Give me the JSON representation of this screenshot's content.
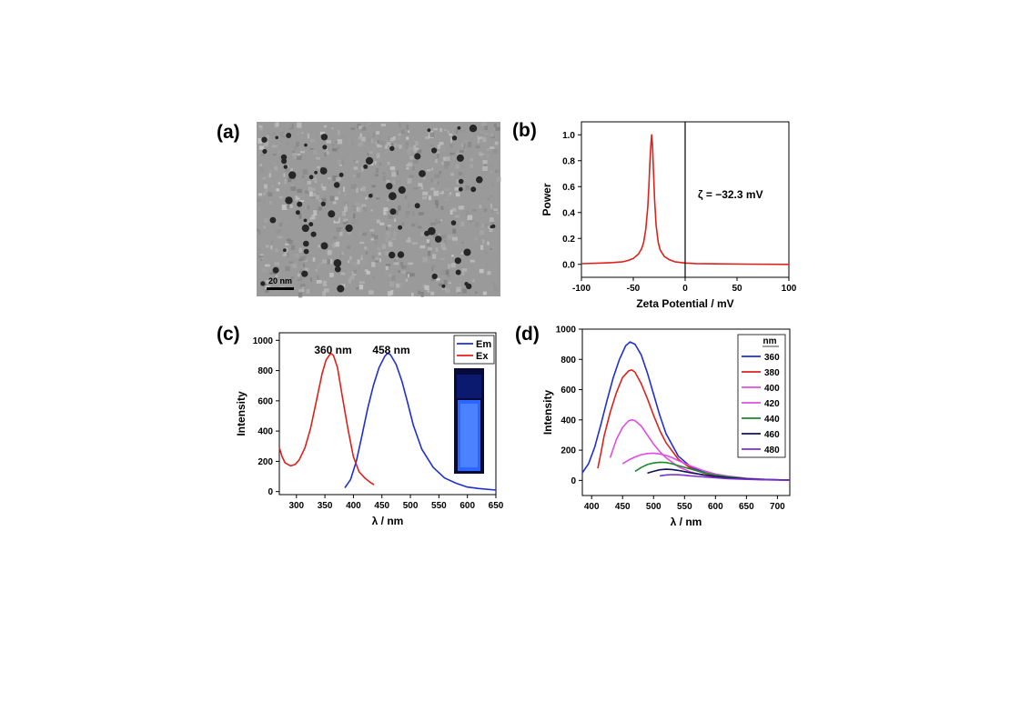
{
  "figure": {
    "panel_labels": [
      "(a)",
      "(b)",
      "(c)",
      "(d)"
    ]
  },
  "panel_a": {
    "scale_bar_label": "20 nm"
  },
  "chart_data": [
    {
      "panel": "(b)",
      "type": "line",
      "xlabel": "Zeta Potential / mV",
      "ylabel": "Power",
      "xlim": [
        -100,
        100
      ],
      "ylim": [
        -0.1,
        1.1
      ],
      "xticks": [
        -100,
        -50,
        0,
        50,
        100
      ],
      "yticks": [
        0.0,
        0.2,
        0.4,
        0.6,
        0.8,
        1.0
      ],
      "ytick_labels": [
        "0.0",
        "0.2",
        "0.4",
        "0.6",
        "0.8",
        "1.0"
      ],
      "annotation": "ζ = −32.3 mV",
      "reference_line_x": 0,
      "series": [
        {
          "color": "#e0201b",
          "x": [
            -100,
            -80,
            -70,
            -60,
            -55,
            -50,
            -45,
            -42,
            -40,
            -38,
            -36,
            -35,
            -34,
            -33,
            -32.3,
            -31.5,
            -30.5,
            -29.5,
            -28,
            -26,
            -24,
            -20,
            -15,
            -10,
            0,
            10,
            30,
            60,
            100
          ],
          "y": [
            0.005,
            0.01,
            0.014,
            0.02,
            0.03,
            0.045,
            0.08,
            0.12,
            0.17,
            0.27,
            0.45,
            0.6,
            0.78,
            0.93,
            1.0,
            0.92,
            0.72,
            0.5,
            0.3,
            0.17,
            0.11,
            0.06,
            0.035,
            0.02,
            0.01,
            0.006,
            0.004,
            0.002,
            0.0
          ]
        }
      ]
    },
    {
      "panel": "(c)",
      "type": "line",
      "xlabel": "λ / nm",
      "ylabel": "Intensity",
      "xlim": [
        270,
        650
      ],
      "ylim": [
        -20,
        1050
      ],
      "xticks": [
        300,
        350,
        400,
        450,
        500,
        550,
        600,
        650
      ],
      "yticks": [
        0,
        200,
        400,
        600,
        800,
        1000
      ],
      "annotations": [
        "360 nm",
        "458 nm"
      ],
      "legend_position": "top-right",
      "series": [
        {
          "name": "Em",
          "color": "#1f2fd6",
          "x": [
            385,
            395,
            405,
            415,
            425,
            435,
            445,
            455,
            460,
            465,
            475,
            485,
            495,
            505,
            520,
            540,
            560,
            580,
            600,
            620,
            650
          ],
          "y": [
            25,
            80,
            200,
            370,
            550,
            700,
            820,
            895,
            915,
            905,
            840,
            730,
            590,
            440,
            280,
            160,
            90,
            55,
            30,
            20,
            10
          ]
        },
        {
          "name": "Ex",
          "color": "#e0201b",
          "x": [
            270,
            275,
            280,
            290,
            298,
            305,
            315,
            325,
            335,
            345,
            352,
            360,
            365,
            372,
            380,
            390,
            400,
            410,
            420,
            430,
            436
          ],
          "y": [
            290,
            230,
            190,
            170,
            180,
            210,
            290,
            420,
            600,
            780,
            870,
            915,
            900,
            820,
            640,
            420,
            230,
            130,
            90,
            60,
            45
          ]
        }
      ]
    },
    {
      "panel": "(d)",
      "type": "line",
      "xlabel": "λ / nm",
      "ylabel": "Intensity",
      "xlim": [
        385,
        720
      ],
      "ylim": [
        -100,
        1000
      ],
      "xticks": [
        400,
        450,
        500,
        550,
        600,
        650,
        700
      ],
      "yticks": [
        0,
        200,
        400,
        600,
        800,
        1000
      ],
      "legend_title": "nm",
      "legend_position": "top-right",
      "series": [
        {
          "name": "360",
          "color": "#1f2fd6",
          "x": [
            385,
            395,
            405,
            415,
            425,
            435,
            445,
            455,
            462,
            470,
            480,
            490,
            500,
            510,
            520,
            540,
            560,
            580,
            600,
            620,
            650,
            680,
            720
          ],
          "y": [
            50,
            110,
            220,
            370,
            530,
            680,
            800,
            890,
            915,
            900,
            830,
            710,
            570,
            430,
            310,
            160,
            90,
            55,
            30,
            20,
            10,
            5,
            2
          ]
        },
        {
          "name": "380",
          "color": "#e0201b",
          "x": [
            410,
            415,
            420,
            430,
            440,
            450,
            460,
            465,
            470,
            480,
            490,
            500,
            510,
            520,
            540,
            560,
            580,
            600,
            620,
            650,
            680,
            720
          ],
          "y": [
            80,
            180,
            290,
            450,
            580,
            680,
            725,
            730,
            715,
            640,
            540,
            430,
            330,
            250,
            140,
            80,
            50,
            30,
            20,
            10,
            5,
            2
          ]
        },
        {
          "name": "400",
          "color": "#e24ce6",
          "x": [
            430,
            435,
            440,
            450,
            460,
            465,
            470,
            480,
            490,
            500,
            510,
            520,
            540,
            560,
            580,
            600,
            620,
            650,
            680,
            720
          ],
          "y": [
            150,
            210,
            270,
            350,
            395,
            400,
            395,
            360,
            300,
            240,
            190,
            150,
            90,
            55,
            35,
            22,
            15,
            8,
            4,
            2
          ]
        },
        {
          "name": "420",
          "color": "#e24ce6",
          "x": [
            450,
            460,
            470,
            480,
            490,
            500,
            510,
            520,
            530,
            540,
            560,
            580,
            600,
            620,
            650,
            680,
            720
          ],
          "y": [
            110,
            135,
            155,
            170,
            178,
            180,
            175,
            165,
            150,
            130,
            95,
            65,
            42,
            28,
            14,
            7,
            2
          ]
        },
        {
          "name": "440",
          "color": "#1a8a2a",
          "x": [
            470,
            480,
            490,
            500,
            510,
            520,
            530,
            540,
            560,
            580,
            600,
            620,
            650,
            680,
            720
          ],
          "y": [
            60,
            85,
            105,
            115,
            120,
            118,
            110,
            98,
            75,
            52,
            35,
            24,
            12,
            6,
            2
          ]
        },
        {
          "name": "460",
          "color": "#0f1550",
          "x": [
            490,
            500,
            510,
            520,
            530,
            540,
            550,
            560,
            580,
            600,
            620,
            650,
            680,
            720
          ],
          "y": [
            48,
            60,
            70,
            74,
            72,
            66,
            58,
            50,
            37,
            26,
            18,
            10,
            5,
            2
          ]
        },
        {
          "name": "480",
          "color": "#7a2fd0",
          "x": [
            510,
            520,
            530,
            540,
            550,
            560,
            580,
            600,
            620,
            650,
            680,
            720
          ],
          "y": [
            30,
            36,
            38,
            37,
            34,
            30,
            23,
            17,
            12,
            7,
            4,
            1
          ]
        }
      ]
    }
  ]
}
